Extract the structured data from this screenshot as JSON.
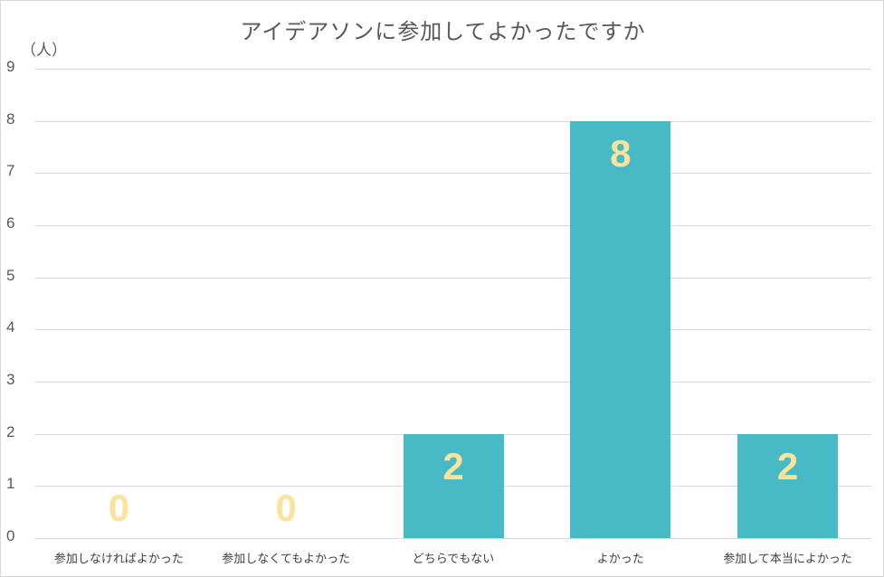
{
  "chart_data": {
    "type": "bar",
    "title": "アイデアソンに参加してよかったですか",
    "ylabel": "（人）",
    "xlabel": "",
    "categories": [
      "参加しなければよかった",
      "参加しなくてもよかった",
      "どちらでもない",
      "よかった",
      "参加して本当によかった"
    ],
    "values": [
      0,
      0,
      2,
      8,
      2
    ],
    "ylim": [
      0,
      9
    ],
    "yticks": [
      "0",
      "1",
      "2",
      "3",
      "4",
      "5",
      "6",
      "7",
      "8",
      "9"
    ],
    "data_labels": [
      "0",
      "0",
      "2",
      "8",
      "2"
    ],
    "grid": true,
    "legend": null,
    "colors": {
      "bar": "#47bac6",
      "data_label": "#fbe39b",
      "grid": "#d9d9d9",
      "text": "#595959"
    }
  }
}
